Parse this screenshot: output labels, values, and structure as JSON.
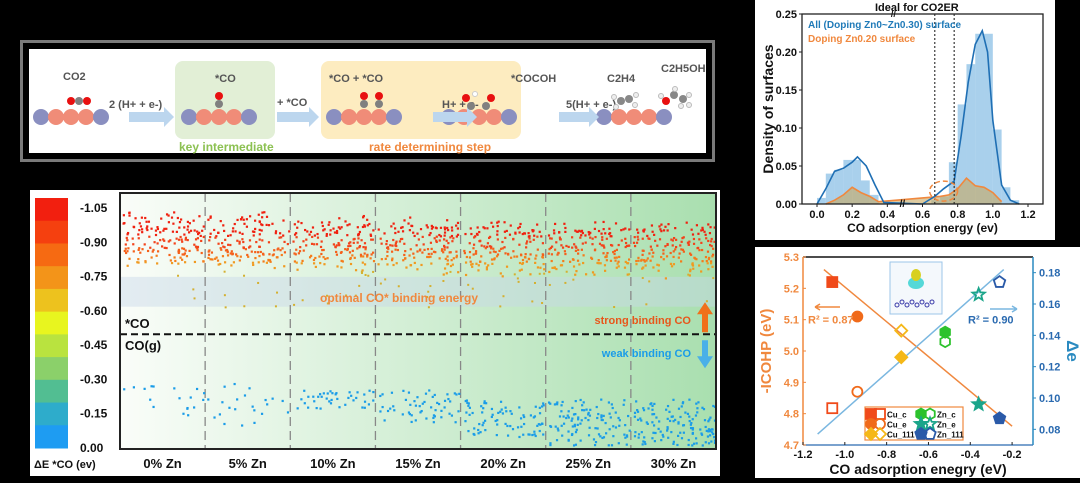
{
  "scheme": {
    "reactant": "CO2",
    "step1_label": "2 (H+ + e-)",
    "intermediate_label": "*CO",
    "intermediate_tag": "key intermediate",
    "step2_label": "+ *CO",
    "coupled_label": "*CO + *CO",
    "step3_label": "H+ + e-",
    "cocoh_label": "*COCOH",
    "rds_tag": "rate determining step",
    "step4_label": "5(H+ + e-)",
    "product1": "C2H4",
    "product2": "C2H5OH",
    "colors": {
      "green_box": "#e2efd6",
      "yellow_box": "#fdecc0",
      "green_text": "#8cc152",
      "orange_text": "#f0883e",
      "cu_atom": "#f08c78",
      "zn_atom": "#8a8fc0"
    }
  },
  "chart_data": [
    {
      "type": "scatter",
      "title": "",
      "colorbar": {
        "label": "ΔE *CO (ev)",
        "ticks": [
          "-1.05",
          "-0.90",
          "-0.75",
          "-0.60",
          "-0.45",
          "-0.30",
          "-0.15",
          "0.00"
        ],
        "colors": [
          "#f21f0f",
          "#f5400f",
          "#f66a12",
          "#f39419",
          "#edc21e",
          "#e8f51f",
          "#b9e33f",
          "#8bd06a",
          "#52be92",
          "#2eaccb",
          "#1e9cf2"
        ]
      },
      "categories": [
        "0% Zn",
        "5% Zn",
        "10% Zn",
        "15% Zn",
        "20% Zn",
        "25% Zn",
        "30% Zn"
      ],
      "ylim": [
        0.0,
        -1.05
      ],
      "strong_band_range": [
        -1.0,
        -0.75
      ],
      "optimal_band": {
        "range": [
          -0.75,
          -0.62
        ],
        "label": "optimal CO* binding energy"
      },
      "threshold": {
        "value": -0.5,
        "above_label": "*CO",
        "below_label": "CO(g)"
      },
      "annotations": {
        "strong": "strong binding CO",
        "weak": "weak binding CO"
      },
      "weak_points_count_by_category": [
        18,
        22,
        40,
        55,
        80,
        110,
        130
      ],
      "weak_range_by_category": [
        [
          -0.15,
          -0.28
        ],
        [
          -0.1,
          -0.3
        ],
        [
          -0.18,
          -0.26
        ],
        [
          -0.12,
          -0.26
        ],
        [
          -0.05,
          -0.22
        ],
        [
          -0.02,
          -0.22
        ],
        [
          -0.02,
          -0.22
        ]
      ],
      "strong_center_by_category": [
        -0.92,
        -0.91,
        -0.9,
        -0.89,
        -0.88,
        -0.88,
        -0.87
      ]
    },
    {
      "type": "bar",
      "title": "Ideal for CO2ER",
      "xlabel": "CO adsorption energy (ev)",
      "ylabel": "Density of surfaces",
      "xticks": [
        "0.0",
        "0.2",
        "0.4",
        "0.6",
        "0.8",
        "1.0",
        "1.2"
      ],
      "yticks": [
        "0.00",
        "0.05",
        "0.10",
        "0.15",
        "0.20",
        "0.25"
      ],
      "ylim": [
        0,
        0.25
      ],
      "legend": [
        "All (Doping Zn0~Zn0.30) surface",
        "Doping Zn0.20 surface"
      ],
      "legend_position": "top-left",
      "ideal_range": [
        0.67,
        0.78
      ],
      "bins": [
        0.0,
        0.05,
        0.1,
        0.15,
        0.2,
        0.25,
        0.3,
        0.35,
        0.65,
        0.7,
        0.75,
        0.8,
        0.85,
        0.9,
        0.95,
        1.0,
        1.05,
        1.1
      ],
      "series": [
        {
          "name": "All (Doping Zn0~Zn0.30) surface",
          "color": "#6fb1e0",
          "values": [
            0.008,
            0.04,
            0.045,
            0.058,
            0.058,
            0.031,
            0.012,
            0.0,
            0.005,
            0.01,
            0.055,
            0.131,
            0.184,
            0.224,
            0.224,
            0.098,
            0.022,
            0.005
          ]
        },
        {
          "name": "Doping Zn0.20 surface",
          "color": "#f0883e",
          "kde_x": [
            0.05,
            0.1,
            0.15,
            0.2,
            0.25,
            0.3,
            0.35,
            0.6,
            0.7,
            0.75,
            0.8,
            0.85,
            0.9,
            0.95,
            1.0,
            1.05
          ],
          "kde_y": [
            0.0,
            0.005,
            0.012,
            0.022,
            0.015,
            0.01,
            0.003,
            0.0,
            0.01,
            0.012,
            0.02,
            0.034,
            0.024,
            0.022,
            0.015,
            0.003
          ]
        }
      ],
      "kde_all": {
        "x": [
          0.0,
          0.05,
          0.1,
          0.15,
          0.2,
          0.23,
          0.28,
          0.33,
          0.38,
          0.6,
          0.67,
          0.72,
          0.78,
          0.82,
          0.86,
          0.9,
          0.94,
          0.97,
          1.0,
          1.05,
          1.1,
          1.15
        ],
        "y": [
          0.0,
          0.02,
          0.043,
          0.047,
          0.055,
          0.062,
          0.05,
          0.025,
          0.002,
          0.0,
          0.01,
          0.02,
          0.03,
          0.09,
          0.16,
          0.21,
          0.228,
          0.2,
          0.11,
          0.025,
          0.005,
          0.0
        ]
      }
    },
    {
      "type": "scatter",
      "xlabel": "CO adsorption enegry (eV)",
      "ylabel_left": "-ICOHP (eV)",
      "ylabel_right": "Δe",
      "xlim": [
        -1.2,
        -0.1
      ],
      "ylim_left": [
        4.7,
        5.3
      ],
      "ylim_right": [
        0.07,
        0.19
      ],
      "xticks": [
        "-1.2",
        "-1.0",
        "-0.8",
        "-0.6",
        "-0.4",
        "-0.2"
      ],
      "yticks_left": [
        "4.7",
        "4.8",
        "4.9",
        "5.0",
        "5.1",
        "5.2",
        "5.3"
      ],
      "yticks_right": [
        "0.08",
        "0.10",
        "0.12",
        "0.14",
        "0.16",
        "0.18"
      ],
      "r2_left": "R² = 0.87",
      "r2_right": "R² = 0.90",
      "fit_left": {
        "x": [
          -1.1,
          -0.2
        ],
        "y": [
          5.26,
          4.76
        ],
        "color": "#f0883e"
      },
      "fit_right": {
        "x": [
          -1.13,
          -0.24
        ],
        "y": [
          0.077,
          0.182
        ],
        "color": "#7ab7e0"
      },
      "series": [
        {
          "name": "Cu_c",
          "marker": "square",
          "color": "#f04a1a",
          "icohp": {
            "x": -1.06,
            "y": 5.22
          },
          "de": {
            "x": -1.06,
            "y": 0.0935
          }
        },
        {
          "name": "Cu_e",
          "marker": "circle",
          "color": "#f06a1a",
          "icohp": {
            "x": -0.94,
            "y": 5.11
          },
          "de": {
            "x": -0.94,
            "y": 0.104
          }
        },
        {
          "name": "Cu_111",
          "marker": "diamond",
          "color": "#f5b818",
          "icohp": {
            "x": -0.73,
            "y": 4.98
          },
          "de": {
            "x": -0.73,
            "y": 0.143
          }
        },
        {
          "name": "Zn_c",
          "marker": "hexagon",
          "color": "#2cc22c",
          "icohp": {
            "x": -0.52,
            "y": 5.06
          },
          "de": {
            "x": -0.52,
            "y": 0.136
          }
        },
        {
          "name": "Zn_e",
          "marker": "star",
          "color": "#1aa58a",
          "icohp": {
            "x": -0.36,
            "y": 4.83
          },
          "de": {
            "x": -0.36,
            "y": 0.166
          }
        },
        {
          "name": "Zn_111",
          "marker": "pentagon",
          "color": "#2a5aa8",
          "icohp": {
            "x": -0.26,
            "y": 4.785
          },
          "de": {
            "x": -0.26,
            "y": 0.174
          }
        }
      ],
      "legend_position": "bottom-center"
    }
  ]
}
